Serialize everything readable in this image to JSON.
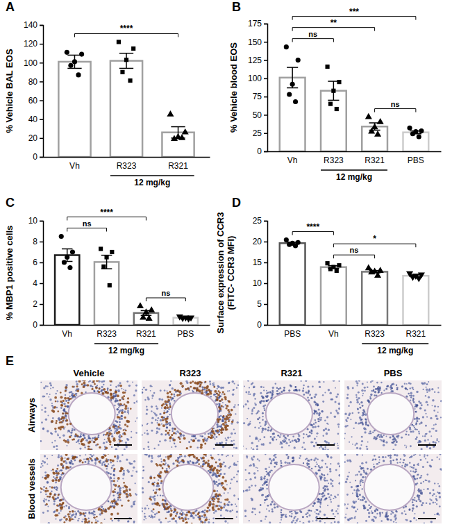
{
  "chart_data": [
    {
      "type": "bar",
      "title": "A",
      "y_label": [
        "% Vehicle BAL EOS"
      ],
      "categories": [
        "Vh",
        "R323",
        "R321"
      ],
      "values": [
        101,
        102,
        26
      ],
      "errors": [
        7,
        8,
        6
      ],
      "points": [
        [
          111,
          109,
          101,
          97,
          87
        ],
        [
          122,
          115,
          103,
          90,
          81
        ],
        [
          45,
          26,
          21,
          19,
          20
        ]
      ],
      "colors": [
        "#a0a0a0",
        "#a0a0a0",
        "#a0a0a0"
      ],
      "markers": [
        "circle",
        "square",
        "triangle"
      ],
      "ylim": [
        0,
        140
      ],
      "yticks": [
        0,
        20,
        40,
        60,
        80,
        100,
        120,
        140
      ],
      "group_label": {
        "text": "12 mg/kg",
        "from": "R323",
        "to": "R321"
      },
      "significance": [
        {
          "from": "Vh",
          "to": "R321",
          "text": "****"
        }
      ]
    },
    {
      "type": "bar",
      "title": "B",
      "y_label": [
        "% Vehicle blood EOS"
      ],
      "categories": [
        "Vh",
        "R323",
        "R321",
        "PBS"
      ],
      "values": [
        101,
        83,
        34,
        26
      ],
      "errors": [
        14,
        13,
        5,
        2
      ],
      "points": [
        [
          143,
          125,
          92,
          78,
          68
        ],
        [
          116,
          95,
          83,
          65,
          58
        ],
        [
          47,
          40,
          33,
          27,
          23
        ],
        [
          32,
          28,
          27,
          24,
          20
        ]
      ],
      "colors": [
        "#a0a0a0",
        "#a0a0a0",
        "#a0a0a0",
        "#cccccc"
      ],
      "markers": [
        "circle",
        "square",
        "triangle",
        "circle"
      ],
      "ylim": [
        0,
        175
      ],
      "yticks": [
        0,
        25,
        50,
        75,
        100,
        125,
        150,
        175
      ],
      "group_label": {
        "text": "12 mg/kg",
        "from": "R323",
        "to": "R321"
      },
      "significance": [
        {
          "from": "R321",
          "to": "PBS",
          "text": "ns"
        },
        {
          "from": "Vh",
          "to": "R323",
          "text": "ns"
        },
        {
          "from": "Vh",
          "to": "R321",
          "text": "**"
        },
        {
          "from": "Vh",
          "to": "PBS",
          "text": "***"
        }
      ]
    },
    {
      "type": "bar",
      "title": "C",
      "y_label": [
        "% MBP1 positive cells"
      ],
      "categories": [
        "Vh",
        "R323",
        "R321",
        "PBS"
      ],
      "values": [
        6.7,
        6.04,
        1.14,
        0.69
      ],
      "errors": [
        0.6,
        0.65,
        0.23,
        0.04
      ],
      "points": [
        [
          8.5,
          7.0,
          6.5,
          6.0,
          5.5
        ],
        [
          7.3,
          7.0,
          6.5,
          5.6,
          3.8
        ],
        [
          1.8,
          1.4,
          1.2,
          0.7,
          0.6
        ],
        [
          0.8,
          0.7,
          0.7,
          0.65,
          0.6
        ]
      ],
      "colors": [
        "#1a1a1a",
        "#a0a0a0",
        "#707070",
        "#cccccc"
      ],
      "markers": [
        "circle",
        "square",
        "triangle",
        "triangle-down"
      ],
      "ylim": [
        0,
        10
      ],
      "yticks": [
        0,
        2,
        4,
        6,
        8,
        10
      ],
      "group_label": {
        "text": "12 mg/kg",
        "from": "R323",
        "to": "R321"
      },
      "significance": [
        {
          "from": "R321",
          "to": "PBS",
          "text": "ns"
        },
        {
          "from": "Vh",
          "to": "R323",
          "text": "ns"
        },
        {
          "from": "Vh",
          "to": "R321",
          "text": "****"
        }
      ]
    },
    {
      "type": "bar",
      "title": "D",
      "y_label": [
        "Surface expression of CCR3",
        "(FITC- CCR3 MFI)"
      ],
      "categories": [
        "PBS",
        "Vh",
        "R323",
        "R321"
      ],
      "values": [
        19.62,
        13.88,
        12.76,
        11.8
      ],
      "errors": [
        0.25,
        0.32,
        0.3,
        0.22
      ],
      "points": [
        [
          20.4,
          19.8,
          19.6,
          19.3,
          19.0
        ],
        [
          14.8,
          14.3,
          13.9,
          13.4,
          13.0
        ],
        [
          13.6,
          13.0,
          12.8,
          12.6,
          11.8
        ],
        [
          12.4,
          12.1,
          11.8,
          11.5,
          11.2
        ]
      ],
      "colors": [
        "#555555",
        "#a0a0a0",
        "#777777",
        "#cccccc"
      ],
      "markers": [
        "circle",
        "square",
        "triangle",
        "triangle-down"
      ],
      "ylim": [
        0,
        25
      ],
      "yticks": [
        0,
        5,
        10,
        15,
        20,
        25
      ],
      "group_label": {
        "text": "12 mg/kg",
        "from": "R323",
        "to": "R321"
      },
      "significance": [
        {
          "from": "PBS",
          "to": "Vh",
          "text": "****"
        },
        {
          "from": "Vh",
          "to": "R323",
          "text": "ns"
        },
        {
          "from": "Vh",
          "to": "R321",
          "text": "*"
        }
      ]
    }
  ],
  "panel_e": {
    "title": "E",
    "columns": [
      "Vehicle",
      "R323",
      "R321",
      "PBS"
    ],
    "rows": [
      "Airways",
      "Blood vessels"
    ],
    "eosinophil_staining": [
      true,
      true,
      false,
      false
    ]
  }
}
